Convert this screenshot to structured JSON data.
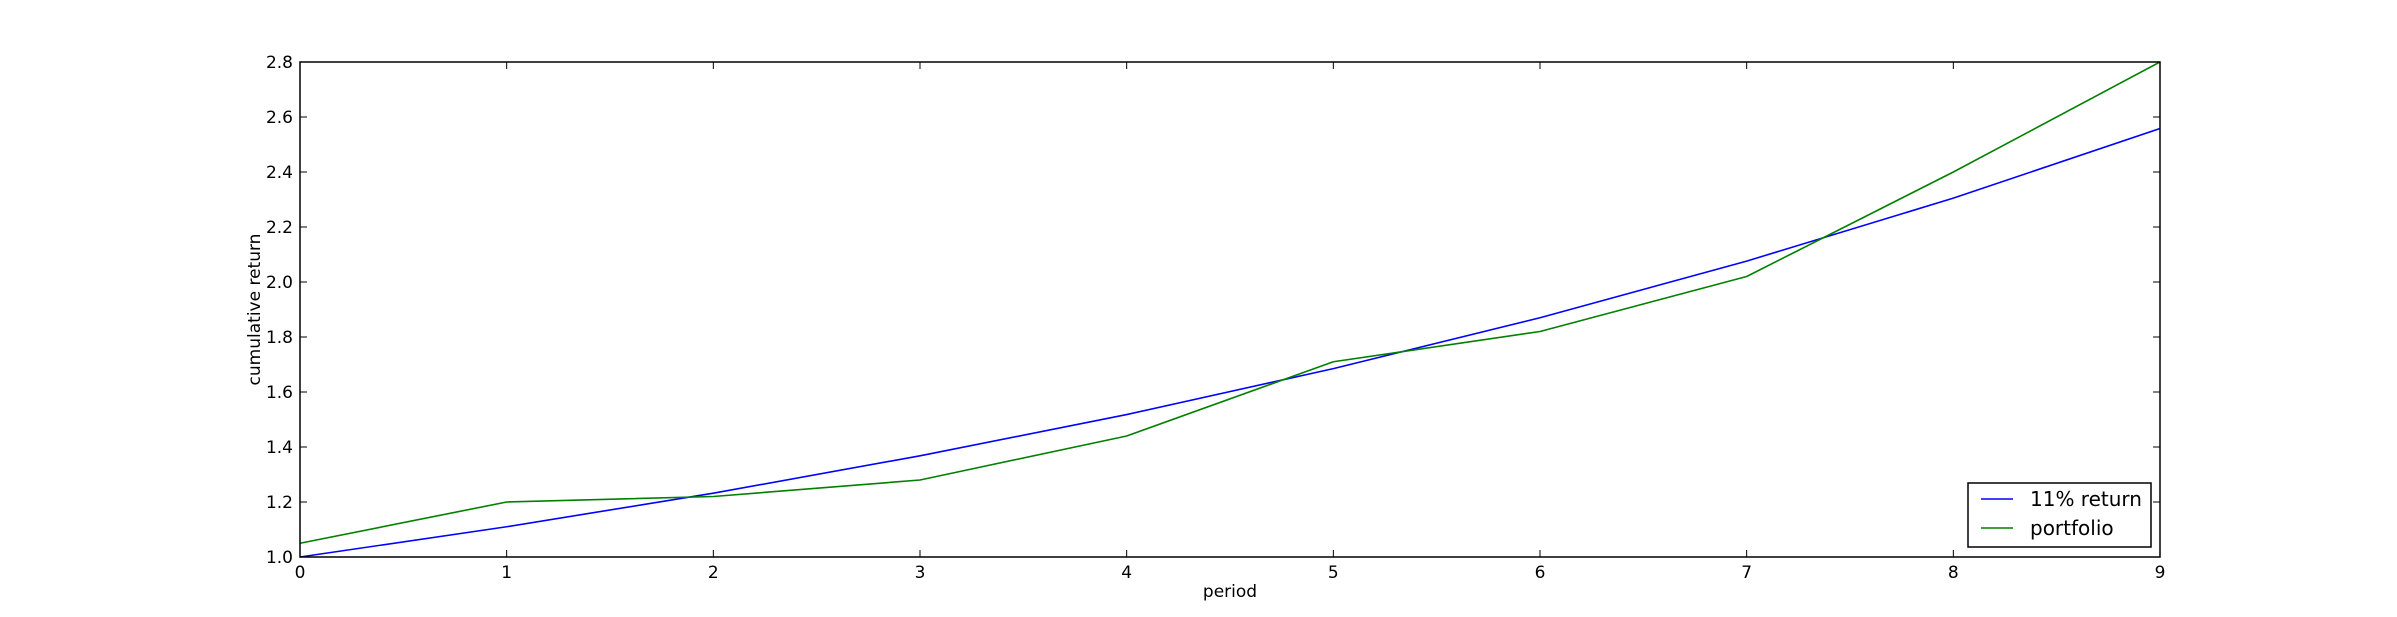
{
  "chart_data": {
    "type": "line",
    "xlabel": "period",
    "ylabel": "cumulative return",
    "xlim": [
      0,
      9
    ],
    "ylim": [
      1.0,
      2.8
    ],
    "x": [
      0,
      1,
      2,
      3,
      4,
      5,
      6,
      7,
      8,
      9
    ],
    "x_ticks": [
      "0",
      "1",
      "2",
      "3",
      "4",
      "5",
      "6",
      "7",
      "8",
      "9"
    ],
    "y_ticks": [
      "1.0",
      "1.2",
      "1.4",
      "1.6",
      "1.8",
      "2.0",
      "2.2",
      "2.4",
      "2.6",
      "2.8"
    ],
    "grid": false,
    "legend_position": "bottom-right",
    "series": [
      {
        "name": "11% return",
        "color": "#0000ff",
        "values": [
          1.0,
          1.11,
          1.232,
          1.368,
          1.518,
          1.685,
          1.87,
          2.076,
          2.305,
          2.558
        ]
      },
      {
        "name": "portfolio",
        "color": "#008000",
        "values": [
          1.05,
          1.2,
          1.22,
          1.28,
          1.44,
          1.71,
          1.82,
          2.02,
          2.4,
          2.8
        ]
      }
    ]
  }
}
